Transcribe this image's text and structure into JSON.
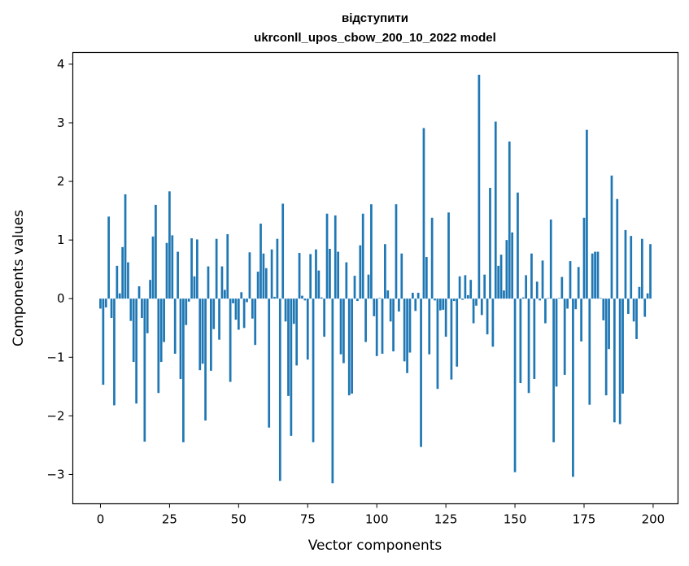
{
  "chart_data": {
    "type": "bar",
    "title_lines": [
      "відступити",
      "ukrconll_upos_cbow_200_10_2022 model"
    ],
    "xlabel": "Vector components",
    "ylabel": "Components values",
    "xlim": [
      -10,
      209
    ],
    "ylim": [
      -3.5,
      4.2
    ],
    "xticks": [
      0,
      25,
      50,
      75,
      100,
      125,
      150,
      175,
      200
    ],
    "xtick_labels": [
      "0",
      "25",
      "50",
      "75",
      "100",
      "125",
      "150",
      "175",
      "200"
    ],
    "yticks": [
      -3,
      -2,
      -1,
      0,
      1,
      2,
      3,
      4
    ],
    "ytick_labels": [
      "−3",
      "−2",
      "−1",
      "0",
      "1",
      "2",
      "3",
      "4"
    ],
    "bar_color": "#1f77b4",
    "bar_width": 0.8,
    "values": [
      -0.17,
      -1.47,
      -0.15,
      1.4,
      -0.33,
      -1.82,
      0.56,
      0.09,
      0.88,
      1.78,
      0.62,
      -0.38,
      -1.08,
      -1.79,
      0.21,
      -0.33,
      -2.44,
      -0.59,
      0.32,
      1.06,
      1.6,
      -1.61,
      -1.08,
      -0.74,
      0.95,
      1.83,
      1.08,
      -0.94,
      0.8,
      -1.37,
      -2.45,
      -0.45,
      -0.05,
      1.03,
      0.38,
      1.01,
      -1.22,
      -1.11,
      -2.08,
      0.55,
      -1.23,
      -0.52,
      1.02,
      -0.7,
      0.55,
      0.15,
      1.1,
      -1.42,
      -0.08,
      -0.36,
      -0.53,
      0.11,
      -0.5,
      -0.06,
      0.79,
      -0.34,
      -0.79,
      0.46,
      1.28,
      0.77,
      0.52,
      -2.2,
      0.84,
      0.03,
      1.02,
      -3.11,
      1.62,
      -0.39,
      -1.66,
      -2.34,
      -0.43,
      -1.14,
      0.78,
      0.05,
      -0.03,
      -1.04,
      0.76,
      -2.45,
      0.84,
      0.48,
      0.02,
      -0.65,
      1.45,
      0.85,
      -3.15,
      1.42,
      0.8,
      -0.95,
      -1.1,
      0.62,
      -1.65,
      -1.62,
      0.39,
      -0.04,
      0.91,
      1.45,
      -0.74,
      0.41,
      1.61,
      -0.3,
      -0.98,
      0.01,
      -0.94,
      0.93,
      0.14,
      -0.39,
      -0.9,
      1.61,
      -0.22,
      0.77,
      -1.07,
      -1.27,
      -0.92,
      0.1,
      -0.21,
      0.1,
      -2.53,
      2.91,
      0.71,
      -0.95,
      1.38,
      -0.03,
      -1.54,
      -0.2,
      -0.19,
      -0.65,
      1.47,
      -1.38,
      -0.04,
      -1.16,
      0.38,
      -0.02,
      0.4,
      0.06,
      0.32,
      -0.42,
      -0.12,
      3.82,
      -0.28,
      0.41,
      -0.61,
      1.89,
      -0.82,
      3.02,
      0.56,
      0.75,
      0.14,
      1.0,
      2.68,
      1.13,
      -2.96,
      1.81,
      -1.44,
      0.02,
      0.4,
      -1.61,
      0.77,
      -1.37,
      0.29,
      -0.03,
      0.65,
      -0.42,
      0.01,
      1.35,
      -2.45,
      -1.5,
      0.01,
      0.37,
      -1.3,
      -0.17,
      0.64,
      -3.04,
      -0.18,
      0.54,
      -0.73,
      1.38,
      2.88,
      -1.81,
      0.77,
      0.8,
      0.8,
      0.01,
      -0.37,
      -1.65,
      -0.86,
      2.1,
      -2.11,
      1.7,
      -2.14,
      -1.62,
      1.17,
      -0.26,
      1.07,
      -0.39,
      -0.69,
      0.2,
      1.02,
      -0.31,
      0.09,
      0.93
    ]
  }
}
